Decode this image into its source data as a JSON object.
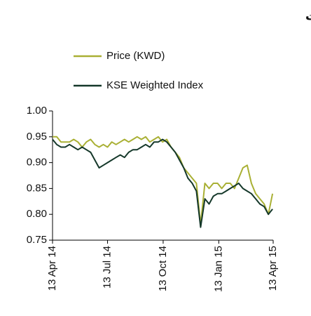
{
  "chart_data": {
    "type": "line",
    "title": "سعر السهم مقارنة بالمؤشر الوزني لبورصة الكويت",
    "x": [
      "2014-04-13",
      "2014-04-20",
      "2014-04-27",
      "2014-05-04",
      "2014-05-11",
      "2014-05-18",
      "2014-05-25",
      "2014-06-01",
      "2014-06-08",
      "2014-06-15",
      "2014-06-22",
      "2014-06-29",
      "2014-07-06",
      "2014-07-13",
      "2014-07-20",
      "2014-07-27",
      "2014-08-03",
      "2014-08-10",
      "2014-08-17",
      "2014-08-24",
      "2014-08-31",
      "2014-09-07",
      "2014-09-14",
      "2014-09-21",
      "2014-09-28",
      "2014-10-05",
      "2014-10-12",
      "2014-10-19",
      "2014-10-26",
      "2014-11-02",
      "2014-11-09",
      "2014-11-16",
      "2014-11-23",
      "2014-11-30",
      "2014-12-07",
      "2014-12-14",
      "2014-12-21",
      "2014-12-28",
      "2015-01-04",
      "2015-01-11",
      "2015-01-18",
      "2015-01-25",
      "2015-02-01",
      "2015-02-08",
      "2015-02-15",
      "2015-02-22",
      "2015-03-01",
      "2015-03-08",
      "2015-03-15",
      "2015-03-22",
      "2015-03-29",
      "2015-04-05",
      "2015-04-12"
    ],
    "series": [
      {
        "name": "Price (KWD)",
        "color": "#a9b034",
        "values": [
          0.95,
          0.95,
          0.94,
          0.94,
          0.94,
          0.945,
          0.94,
          0.93,
          0.94,
          0.945,
          0.935,
          0.93,
          0.935,
          0.93,
          0.94,
          0.935,
          0.94,
          0.945,
          0.94,
          0.945,
          0.95,
          0.945,
          0.95,
          0.94,
          0.945,
          0.95,
          0.94,
          0.945,
          0.93,
          0.92,
          0.91,
          0.89,
          0.88,
          0.87,
          0.86,
          0.78,
          0.86,
          0.85,
          0.86,
          0.86,
          0.85,
          0.86,
          0.86,
          0.85,
          0.87,
          0.89,
          0.895,
          0.86,
          0.84,
          0.83,
          0.82,
          0.8,
          0.84
        ]
      },
      {
        "name": "KSE Weighted Index",
        "color": "#15382a",
        "values": [
          0.945,
          0.935,
          0.93,
          0.93,
          0.935,
          0.93,
          0.925,
          0.93,
          0.925,
          0.92,
          0.905,
          0.89,
          0.895,
          0.9,
          0.905,
          0.91,
          0.915,
          0.91,
          0.92,
          0.925,
          0.925,
          0.93,
          0.935,
          0.93,
          0.94,
          0.94,
          0.945,
          0.94,
          0.93,
          0.92,
          0.905,
          0.89,
          0.87,
          0.86,
          0.845,
          0.775,
          0.83,
          0.82,
          0.835,
          0.84,
          0.84,
          0.845,
          0.85,
          0.855,
          0.86,
          0.85,
          0.845,
          0.84,
          0.83,
          0.82,
          0.815,
          0.8,
          0.81
        ]
      }
    ],
    "xlim": [
      "2014-04-13",
      "2015-04-13"
    ],
    "xticks": [
      {
        "value": "2014-04-13",
        "label": "13 Apr 14"
      },
      {
        "value": "2014-07-13",
        "label": "13 Jul 14"
      },
      {
        "value": "2014-10-13",
        "label": "13 Oct 14"
      },
      {
        "value": "2015-01-13",
        "label": "13 Jan 15"
      },
      {
        "value": "2015-04-13",
        "label": "13 Apr 15"
      }
    ],
    "ylim": [
      0.75,
      1
    ],
    "yticks": [
      0.75,
      {
        "value": 0.8,
        "label": "0.80"
      },
      0.85,
      {
        "value": 0.9,
        "label": "0.90"
      },
      0.95,
      {
        "value": 1,
        "label": "1.00"
      }
    ],
    "legend": "top"
  }
}
